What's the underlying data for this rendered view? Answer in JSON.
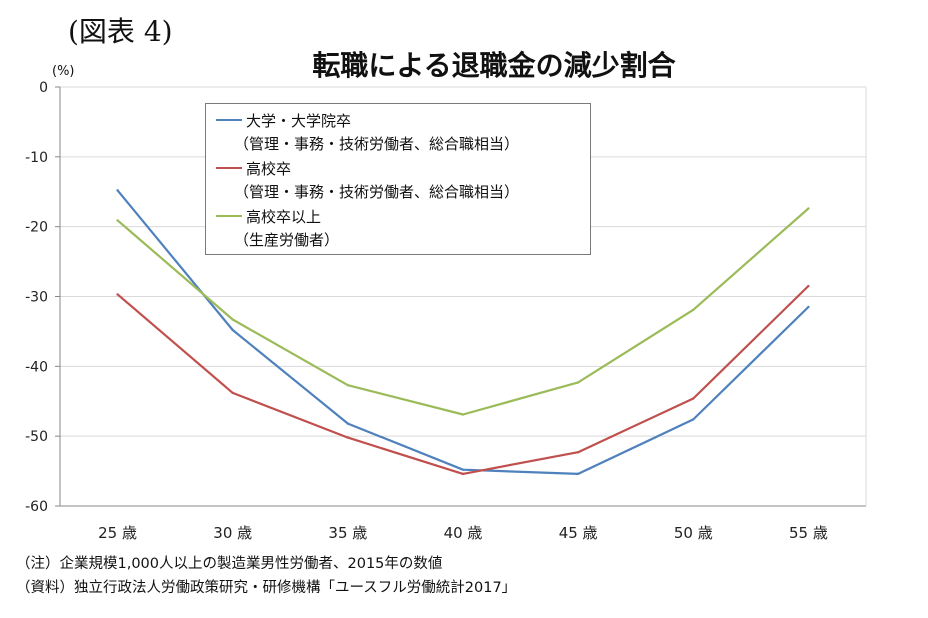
{
  "figure_label": "(図表 4)",
  "notes": [
    "（注）企業規模1,000人以上の製造業男性労働者、2015年の数値",
    "（資料）独立行政法人労働政策研究・研修機構「ユースフル労働統計2017」"
  ],
  "chart_data": {
    "type": "line",
    "title": "転職による退職金の減少割合",
    "ylabel": "(%)",
    "xlabel": "",
    "categories": [
      "25 歳",
      "30 歳",
      "35 歳",
      "40 歳",
      "45 歳",
      "50 歳",
      "55 歳"
    ],
    "ylim": [
      -60,
      0
    ],
    "yticks": [
      0,
      -10,
      -20,
      -30,
      -40,
      -50,
      -60
    ],
    "grid": true,
    "legend_position": "top-left",
    "series": [
      {
        "name": "大学・大学院卒",
        "name_sub": "（管理・事務・技術労働者、総合職相当）",
        "color": "#4f81bd",
        "values": [
          -14.8,
          -34.8,
          -48.2,
          -54.8,
          -55.4,
          -47.6,
          -31.5
        ]
      },
      {
        "name": "高校卒",
        "name_sub": "（管理・事務・技術労働者、総合職相当）",
        "color": "#c0504d",
        "values": [
          -29.7,
          -43.8,
          -50.2,
          -55.4,
          -52.3,
          -44.6,
          -28.5
        ]
      },
      {
        "name": "高校卒以上",
        "name_sub": "（生産労働者）",
        "color": "#9bbb59",
        "values": [
          -19.1,
          -33.3,
          -42.7,
          -46.9,
          -42.3,
          -31.9,
          -17.4
        ]
      }
    ]
  }
}
